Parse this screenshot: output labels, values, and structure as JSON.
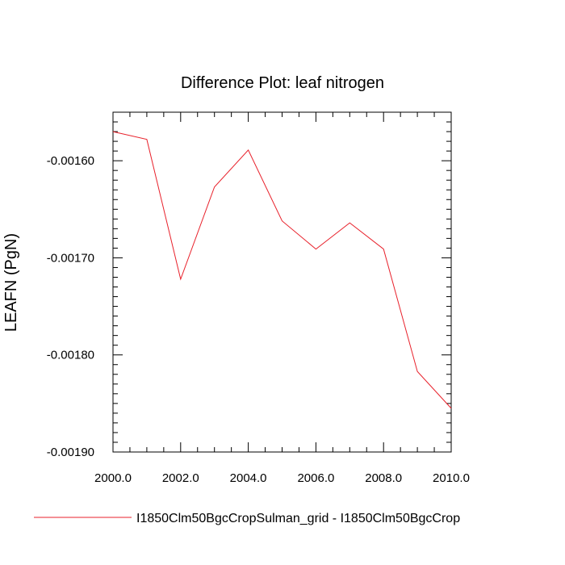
{
  "chart_data": {
    "type": "line",
    "title": "Difference Plot: leaf nitrogen",
    "xlabel": "",
    "ylabel": "LEAFN  (PgN)",
    "xlim": [
      2000,
      2010
    ],
    "ylim": [
      -0.0019,
      -0.00155
    ],
    "x_ticks": [
      2000,
      2002,
      2004,
      2006,
      2008,
      2010
    ],
    "x_tick_labels": [
      "2000.0",
      "2002.0",
      "2004.0",
      "2006.0",
      "2008.0",
      "2010.0"
    ],
    "y_ticks": [
      -0.0016,
      -0.0017,
      -0.0018,
      -0.0019
    ],
    "y_tick_labels": [
      "-0.00160",
      "-0.00170",
      "-0.00180",
      "-0.00190"
    ],
    "grid": false,
    "legend_position": "bottom",
    "series": [
      {
        "name": "I1850Clm50BgcCropSulman_grid - I1850Clm50BgcCrop",
        "color": "#e8212b",
        "x": [
          2000,
          2001,
          2002,
          2003,
          2004,
          2005,
          2006,
          2007,
          2008,
          2009,
          2010
        ],
        "y": [
          -0.00157,
          -0.001578,
          -0.001722,
          -0.001627,
          -0.001589,
          -0.001662,
          -0.001691,
          -0.001664,
          -0.001691,
          -0.001817,
          -0.001855
        ]
      }
    ]
  }
}
